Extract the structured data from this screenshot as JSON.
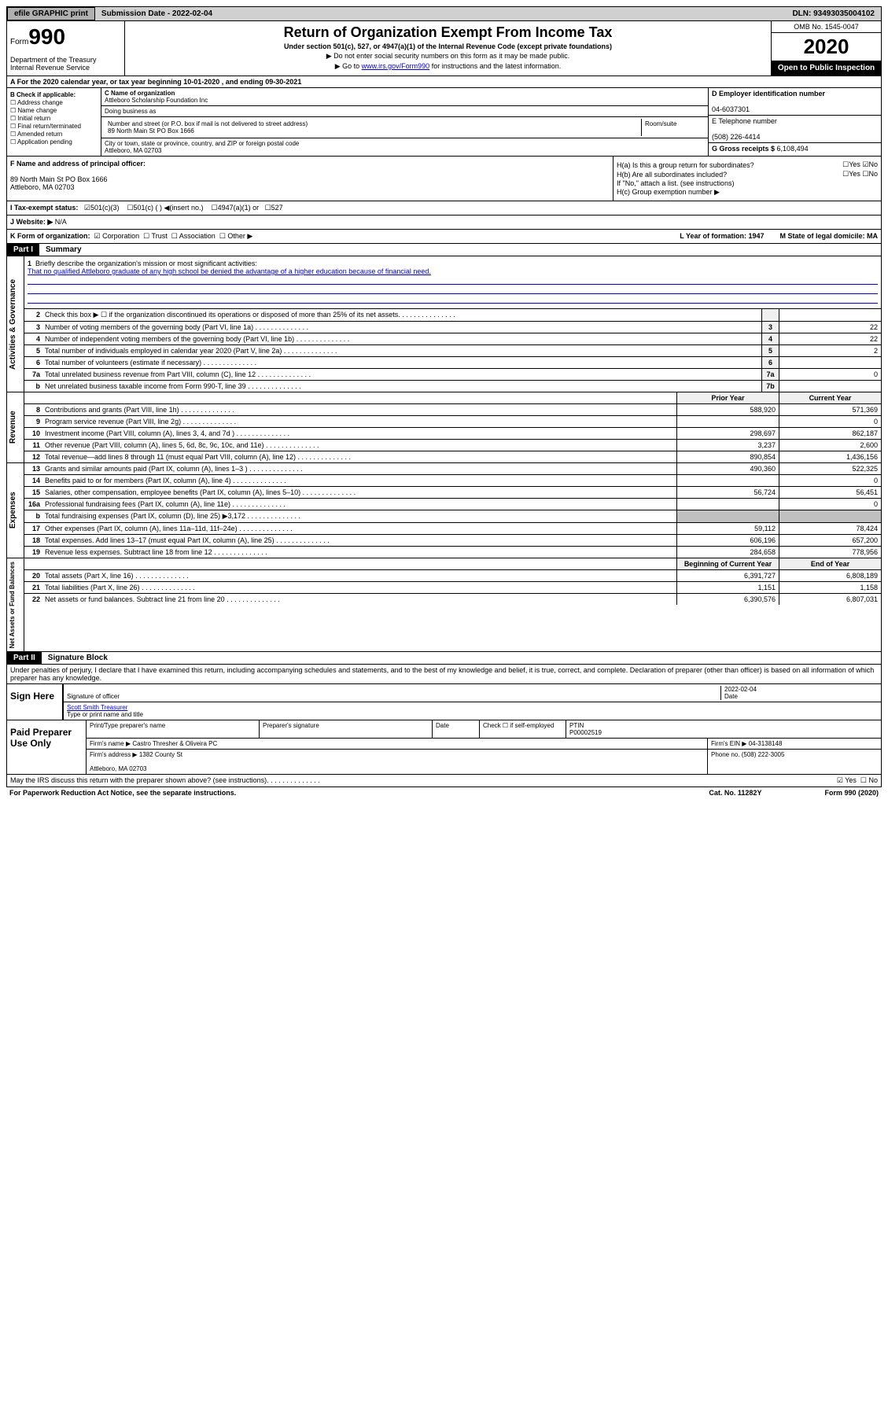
{
  "topbar": {
    "efile": "efile GRAPHIC print",
    "subdate_label": "Submission Date - ",
    "subdate": "2022-02-04",
    "dln_label": "DLN: ",
    "dln": "93493035004102"
  },
  "header": {
    "form": "Form",
    "num": "990",
    "dept": "Department of the Treasury\nInternal Revenue Service",
    "title": "Return of Organization Exempt From Income Tax",
    "subtitle": "Under section 501(c), 527, or 4947(a)(1) of the Internal Revenue Code (except private foundations)",
    "note1": "▶ Do not enter social security numbers on this form as it may be made public.",
    "note2_pre": "▶ Go to ",
    "note2_link": "www.irs.gov/Form990",
    "note2_post": " for instructions and the latest information.",
    "omb": "OMB No. 1545-0047",
    "year": "2020",
    "inspect": "Open to Public Inspection"
  },
  "rowA": "A For the 2020 calendar year, or tax year beginning 10-01-2020   , and ending 09-30-2021",
  "colB": {
    "hdr": "B Check if applicable:",
    "items": [
      "Address change",
      "Name change",
      "Initial return",
      "Final return/terminated",
      "Amended return",
      "Application pending"
    ]
  },
  "colC": {
    "name_lbl": "C Name of organization",
    "name": "Attleboro Scholarship Foundation Inc",
    "dba_lbl": "Doing business as",
    "dba": "",
    "addr_lbl": "Number and street (or P.O. box if mail is not delivered to street address)",
    "room_lbl": "Room/suite",
    "addr": "89 North Main St PO Box 1666",
    "city_lbl": "City or town, state or province, country, and ZIP or foreign postal code",
    "city": "Attleboro, MA  02703"
  },
  "colD": {
    "ein_lbl": "D Employer identification number",
    "ein": "04-6037301",
    "tel_lbl": "E Telephone number",
    "tel": "(508) 226-4414",
    "gross_lbl": "G Gross receipts $ ",
    "gross": "6,108,494"
  },
  "sectF": {
    "lbl": "F  Name and address of principal officer:",
    "addr": "89 North Main St PO Box 1666\nAttleboro, MA  02703"
  },
  "sectH": {
    "ha": "H(a)  Is this a group return for subordinates?",
    "hb": "H(b)  Are all subordinates included?",
    "hb_note": "If \"No,\" attach a list. (see instructions)",
    "hc": "H(c)  Group exemption number ▶"
  },
  "rowI": {
    "lbl": "I   Tax-exempt status:",
    "opts": [
      "501(c)(3)",
      "501(c) (  ) ◀(insert no.)",
      "4947(a)(1) or",
      "527"
    ]
  },
  "rowJ": {
    "lbl": "J   Website: ▶",
    "val": "  N/A"
  },
  "rowK": {
    "lbl": "K Form of organization:",
    "opts": [
      "Corporation",
      "Trust",
      "Association",
      "Other ▶"
    ],
    "L": "L Year of formation: 1947",
    "M": "M State of legal domicile: MA"
  },
  "part1": {
    "hdr": "Part I",
    "title": "Summary"
  },
  "mission": {
    "num": "1",
    "lbl": "Briefly describe the organization's mission or most significant activities:",
    "text": "That no qualified Attleboro graduate of any high school be denied the advantage of a higher education because of financial need."
  },
  "gov_rows": [
    {
      "n": "2",
      "d": "Check this box ▶ ☐  if the organization discontinued its operations or disposed of more than 25% of its net assets.",
      "box": "",
      "v": ""
    },
    {
      "n": "3",
      "d": "Number of voting members of the governing body (Part VI, line 1a)",
      "box": "3",
      "v": "22"
    },
    {
      "n": "4",
      "d": "Number of independent voting members of the governing body (Part VI, line 1b)",
      "box": "4",
      "v": "22"
    },
    {
      "n": "5",
      "d": "Total number of individuals employed in calendar year 2020 (Part V, line 2a)",
      "box": "5",
      "v": "2"
    },
    {
      "n": "6",
      "d": "Total number of volunteers (estimate if necessary)",
      "box": "6",
      "v": ""
    },
    {
      "n": "7a",
      "d": "Total unrelated business revenue from Part VIII, column (C), line 12",
      "box": "7a",
      "v": "0"
    },
    {
      "n": "b",
      "d": "Net unrelated business taxable income from Form 990-T, line 39",
      "box": "7b",
      "v": ""
    }
  ],
  "rev_header": {
    "prior": "Prior Year",
    "current": "Current Year"
  },
  "rev_rows": [
    {
      "n": "8",
      "d": "Contributions and grants (Part VIII, line 1h)",
      "p": "588,920",
      "c": "571,369"
    },
    {
      "n": "9",
      "d": "Program service revenue (Part VIII, line 2g)",
      "p": "",
      "c": "0"
    },
    {
      "n": "10",
      "d": "Investment income (Part VIII, column (A), lines 3, 4, and 7d )",
      "p": "298,697",
      "c": "862,187"
    },
    {
      "n": "11",
      "d": "Other revenue (Part VIII, column (A), lines 5, 6d, 8c, 9c, 10c, and 11e)",
      "p": "3,237",
      "c": "2,600"
    },
    {
      "n": "12",
      "d": "Total revenue—add lines 8 through 11 (must equal Part VIII, column (A), line 12)",
      "p": "890,854",
      "c": "1,436,156"
    }
  ],
  "exp_rows": [
    {
      "n": "13",
      "d": "Grants and similar amounts paid (Part IX, column (A), lines 1–3 )",
      "p": "490,360",
      "c": "522,325"
    },
    {
      "n": "14",
      "d": "Benefits paid to or for members (Part IX, column (A), line 4)",
      "p": "",
      "c": "0"
    },
    {
      "n": "15",
      "d": "Salaries, other compensation, employee benefits (Part IX, column (A), lines 5–10)",
      "p": "56,724",
      "c": "56,451"
    },
    {
      "n": "16a",
      "d": "Professional fundraising fees (Part IX, column (A), line 11e)",
      "p": "",
      "c": "0"
    },
    {
      "n": "b",
      "d": "Total fundraising expenses (Part IX, column (D), line 25) ▶3,172",
      "p": "shaded",
      "c": "shaded"
    },
    {
      "n": "17",
      "d": "Other expenses (Part IX, column (A), lines 11a–11d, 11f–24e)",
      "p": "59,112",
      "c": "78,424"
    },
    {
      "n": "18",
      "d": "Total expenses. Add lines 13–17 (must equal Part IX, column (A), line 25)",
      "p": "606,196",
      "c": "657,200"
    },
    {
      "n": "19",
      "d": "Revenue less expenses. Subtract line 18 from line 12",
      "p": "284,658",
      "c": "778,956"
    }
  ],
  "net_header": {
    "beg": "Beginning of Current Year",
    "end": "End of Year"
  },
  "net_rows": [
    {
      "n": "20",
      "d": "Total assets (Part X, line 16)",
      "p": "6,391,727",
      "c": "6,808,189"
    },
    {
      "n": "21",
      "d": "Total liabilities (Part X, line 26)",
      "p": "1,151",
      "c": "1,158"
    },
    {
      "n": "22",
      "d": "Net assets or fund balances. Subtract line 21 from line 20",
      "p": "6,390,576",
      "c": "6,807,031"
    }
  ],
  "part2": {
    "hdr": "Part II",
    "title": "Signature Block"
  },
  "sig": {
    "decl": "Under penalties of perjury, I declare that I have examined this return, including accompanying schedules and statements, and to the best of my knowledge and belief, it is true, correct, and complete. Declaration of preparer (other than officer) is based on all information of which preparer has any knowledge.",
    "sign_here": "Sign Here",
    "sig_officer": "Signature of officer",
    "date": "2022-02-04",
    "date_lbl": "Date",
    "name": "Scott Smith Treasurer",
    "name_lbl": "Type or print name and title"
  },
  "prep": {
    "title": "Paid Preparer Use Only",
    "h1": "Print/Type preparer's name",
    "h2": "Preparer's signature",
    "h3": "Date",
    "h4_check": "Check ☐ if self-employed",
    "h4_ptin": "PTIN",
    "ptin": "P00002519",
    "firm_lbl": "Firm's name      ▶",
    "firm": "Castro Thresher & Oliveira PC",
    "ein_lbl": "Firm's EIN ▶",
    "ein": "04-3138148",
    "addr_lbl": "Firm's address ▶",
    "addr": "1382 County St\n\nAttleboro, MA  02703",
    "phone_lbl": "Phone no. ",
    "phone": "(508) 222-3005"
  },
  "footer": {
    "discuss": "May the IRS discuss this return with the preparer shown above? (see instructions)",
    "paperwork": "For Paperwork Reduction Act Notice, see the separate instructions.",
    "cat": "Cat. No. 11282Y",
    "form": "Form 990 (2020)"
  }
}
